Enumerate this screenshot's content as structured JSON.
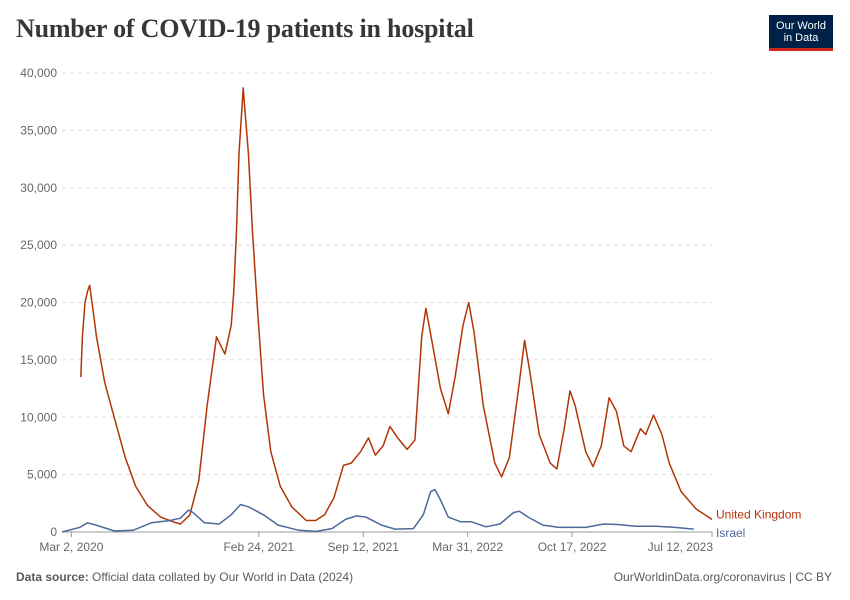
{
  "title": "Number of COVID-19 patients in hospital",
  "logo": {
    "line1": "Our World",
    "line2": "in Data"
  },
  "footer": {
    "source_label": "Data source:",
    "source_text": "Official data collated by Our World in Data (2024)",
    "right_text": "OurWorldinData.org/coronavirus | CC BY"
  },
  "colors": {
    "uk": "#b13507",
    "israel": "#4c6a9c",
    "grid": "#dddddd",
    "axis": "#5b5b5b",
    "logo_bg": "#002147",
    "logo_accent": "#ce261e"
  },
  "chart_data": {
    "type": "line",
    "title": "Number of COVID-19 patients in hospital",
    "xlabel": "",
    "ylabel": "",
    "x_range": [
      "2020-02-13",
      "2023-07-12"
    ],
    "ylim": [
      0,
      40000
    ],
    "yticks": [
      0,
      5000,
      10000,
      15000,
      20000,
      25000,
      30000,
      35000,
      40000
    ],
    "ytick_labels": [
      "0",
      "5,000",
      "10,000",
      "15,000",
      "20,000",
      "25,000",
      "30,000",
      "35,000",
      "40,000"
    ],
    "xticks": [
      "2020-03-02",
      "2021-02-24",
      "2021-09-12",
      "2022-03-31",
      "2022-10-17",
      "2023-07-12"
    ],
    "xtick_labels": [
      "Mar 2, 2020",
      "Feb 24, 2021",
      "Sep 12, 2021",
      "Mar 31, 2022",
      "Oct 17, 2022",
      "Jul 12, 2023"
    ],
    "grid": true,
    "legend": "line-end labels",
    "series": [
      {
        "name": "United Kingdom",
        "points": [
          [
            "2020-03-20",
            13500
          ],
          [
            "2020-03-23",
            17000
          ],
          [
            "2020-03-28",
            20000
          ],
          [
            "2020-04-02",
            21000
          ],
          [
            "2020-04-06",
            21500
          ],
          [
            "2020-04-09",
            20500
          ],
          [
            "2020-04-12",
            19500
          ],
          [
            "2020-04-19",
            17000
          ],
          [
            "2020-05-05",
            13000
          ],
          [
            "2020-05-23",
            10000
          ],
          [
            "2020-06-13",
            6500
          ],
          [
            "2020-07-03",
            4000
          ],
          [
            "2020-07-26",
            2300
          ],
          [
            "2020-08-20",
            1300
          ],
          [
            "2020-09-12",
            900
          ],
          [
            "2020-09-27",
            700
          ],
          [
            "2020-10-15",
            1500
          ],
          [
            "2020-11-01",
            4500
          ],
          [
            "2020-11-17",
            11000
          ],
          [
            "2020-12-05",
            17000
          ],
          [
            "2020-12-21",
            15500
          ],
          [
            "2021-01-02",
            18000
          ],
          [
            "2021-01-07",
            21000
          ],
          [
            "2021-01-12",
            26000
          ],
          [
            "2021-01-17",
            33000
          ],
          [
            "2021-01-22",
            36500
          ],
          [
            "2021-01-25",
            38700
          ],
          [
            "2021-01-28",
            37000
          ],
          [
            "2021-02-04",
            33000
          ],
          [
            "2021-02-12",
            26000
          ],
          [
            "2021-02-22",
            19000
          ],
          [
            "2021-03-05",
            12000
          ],
          [
            "2021-03-19",
            7000
          ],
          [
            "2021-04-06",
            4000
          ],
          [
            "2021-04-28",
            2200
          ],
          [
            "2021-05-26",
            1000
          ],
          [
            "2021-06-13",
            1000
          ],
          [
            "2021-06-30",
            1500
          ],
          [
            "2021-07-18",
            3000
          ],
          [
            "2021-08-05",
            5800
          ],
          [
            "2021-08-20",
            6000
          ],
          [
            "2021-09-07",
            7000
          ],
          [
            "2021-09-22",
            8200
          ],
          [
            "2021-10-05",
            6700
          ],
          [
            "2021-10-20",
            7500
          ],
          [
            "2021-11-02",
            9200
          ],
          [
            "2021-11-17",
            8200
          ],
          [
            "2021-12-05",
            7200
          ],
          [
            "2021-12-20",
            8000
          ],
          [
            "2022-01-02",
            17000
          ],
          [
            "2022-01-10",
            19500
          ],
          [
            "2022-01-22",
            16500
          ],
          [
            "2022-02-07",
            12500
          ],
          [
            "2022-02-22",
            10300
          ],
          [
            "2022-03-07",
            13500
          ],
          [
            "2022-03-22",
            18000
          ],
          [
            "2022-04-02",
            20000
          ],
          [
            "2022-04-12",
            17500
          ],
          [
            "2022-04-30",
            11000
          ],
          [
            "2022-05-22",
            6000
          ],
          [
            "2022-06-04",
            4800
          ],
          [
            "2022-06-19",
            6500
          ],
          [
            "2022-07-08",
            13000
          ],
          [
            "2022-07-18",
            16700
          ],
          [
            "2022-07-28",
            14000
          ],
          [
            "2022-08-15",
            8500
          ],
          [
            "2022-09-05",
            6000
          ],
          [
            "2022-09-18",
            5500
          ],
          [
            "2022-10-02",
            9000
          ],
          [
            "2022-10-13",
            12300
          ],
          [
            "2022-10-23",
            11000
          ],
          [
            "2022-11-12",
            7000
          ],
          [
            "2022-11-26",
            5700
          ],
          [
            "2022-12-12",
            7500
          ],
          [
            "2022-12-27",
            11700
          ],
          [
            "2023-01-10",
            10500
          ],
          [
            "2023-01-24",
            7500
          ],
          [
            "2023-02-07",
            7000
          ],
          [
            "2023-02-25",
            9000
          ],
          [
            "2023-03-07",
            8500
          ],
          [
            "2023-03-22",
            10200
          ],
          [
            "2023-04-07",
            8500
          ],
          [
            "2023-04-21",
            6000
          ],
          [
            "2023-05-14",
            3500
          ],
          [
            "2023-06-12",
            2000
          ],
          [
            "2023-07-12",
            1100
          ]
        ]
      },
      {
        "name": "Israel",
        "points": [
          [
            "2020-02-13",
            0
          ],
          [
            "2020-03-18",
            400
          ],
          [
            "2020-04-02",
            800
          ],
          [
            "2020-04-18",
            600
          ],
          [
            "2020-05-23",
            100
          ],
          [
            "2020-06-28",
            150
          ],
          [
            "2020-08-02",
            800
          ],
          [
            "2020-09-07",
            1000
          ],
          [
            "2020-09-27",
            1200
          ],
          [
            "2020-10-12",
            1900
          ],
          [
            "2020-10-21",
            1700
          ],
          [
            "2020-11-12",
            800
          ],
          [
            "2020-12-10",
            700
          ],
          [
            "2021-01-02",
            1500
          ],
          [
            "2021-01-20",
            2400
          ],
          [
            "2021-02-04",
            2200
          ],
          [
            "2021-03-05",
            1500
          ],
          [
            "2021-04-02",
            600
          ],
          [
            "2021-05-12",
            150
          ],
          [
            "2021-06-14",
            50
          ],
          [
            "2021-07-14",
            300
          ],
          [
            "2021-08-09",
            1100
          ],
          [
            "2021-08-30",
            1400
          ],
          [
            "2021-09-17",
            1300
          ],
          [
            "2021-10-17",
            600
          ],
          [
            "2021-11-12",
            250
          ],
          [
            "2021-12-17",
            300
          ],
          [
            "2022-01-05",
            1500
          ],
          [
            "2022-01-19",
            3500
          ],
          [
            "2022-01-27",
            3700
          ],
          [
            "2022-02-07",
            2800
          ],
          [
            "2022-02-22",
            1300
          ],
          [
            "2022-03-17",
            900
          ],
          [
            "2022-04-07",
            900
          ],
          [
            "2022-05-05",
            450
          ],
          [
            "2022-06-01",
            700
          ],
          [
            "2022-06-27",
            1700
          ],
          [
            "2022-07-08",
            1800
          ],
          [
            "2022-07-25",
            1300
          ],
          [
            "2022-08-22",
            600
          ],
          [
            "2022-09-22",
            400
          ],
          [
            "2022-11-12",
            400
          ],
          [
            "2022-12-17",
            700
          ],
          [
            "2023-01-12",
            650
          ],
          [
            "2023-02-17",
            500
          ],
          [
            "2023-03-27",
            500
          ],
          [
            "2023-05-02",
            400
          ],
          [
            "2023-06-07",
            250
          ]
        ]
      }
    ]
  }
}
